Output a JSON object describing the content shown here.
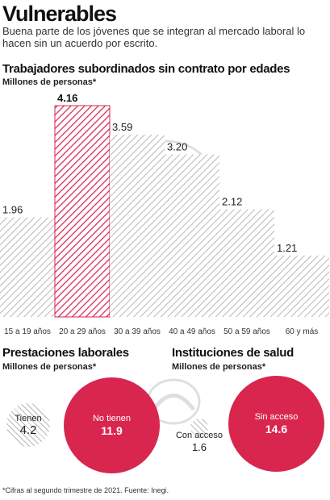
{
  "header": {
    "title": "Vulnerables",
    "subtitle": "Buena parte de los jóvenes que se integran al mercado laboral lo hacen sin un acuerdo por escrito."
  },
  "colors": {
    "accent": "#d8264f",
    "hatch": "#b8b8b8"
  },
  "chart_data": [
    {
      "type": "bar",
      "title": "Trabajadores subordinados sin contrato por edades",
      "ylabel": "Millones de personas*",
      "categories": [
        "15 a 19 años",
        "20 a 29 años",
        "30 a 39 años",
        "40 a 49 años",
        "50 a 59 años",
        "60 y más"
      ],
      "values": [
        1.96,
        4.16,
        3.59,
        3.2,
        2.12,
        1.21
      ],
      "value_labels": [
        "1.96",
        "4.16",
        "3.59",
        "3.20",
        "2.12",
        "1.21"
      ],
      "highlight_index": 1,
      "ylim": [
        0,
        4.16
      ],
      "grid": false
    },
    {
      "type": "pie",
      "title": "Prestaciones laborales",
      "unit": "Millones de personas*",
      "categories": [
        "Tienen",
        "No tienen"
      ],
      "values": [
        4.2,
        11.9
      ],
      "value_labels": [
        "4.2",
        "11.9"
      ]
    },
    {
      "type": "pie",
      "title": "Instituciones de salud",
      "unit": "Millones de personas*",
      "categories": [
        "Con acceso",
        "Sin acceso"
      ],
      "values": [
        1.6,
        14.6
      ],
      "value_labels": [
        "1.6",
        "14.6"
      ]
    }
  ],
  "footnote": "*Cifras al segundo trimestre de 2021. Fuente: Inegi."
}
